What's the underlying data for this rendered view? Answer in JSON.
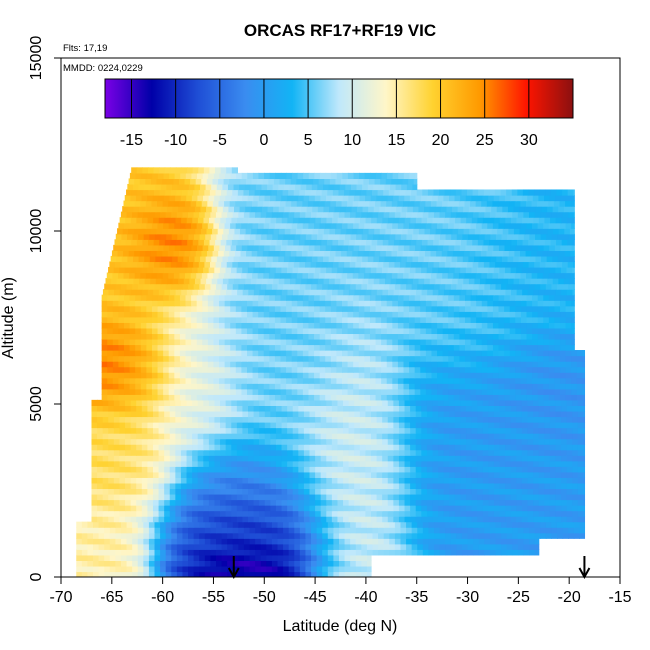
{
  "chart_data": {
    "type": "heatmap",
    "title": "ORCAS RF17+RF19 VIC",
    "annotations": [
      "Flts: 17,19",
      "MMDD: 0224,0229"
    ],
    "xlabel": "Latitude (deg N)",
    "ylabel": "Altitude (m)",
    "xlim": [
      -70,
      -15
    ],
    "ylim": [
      0,
      15000
    ],
    "x_ticks": [
      -70,
      -65,
      -60,
      -55,
      -50,
      -45,
      -40,
      -35,
      -30,
      -25,
      -20,
      -15
    ],
    "y_ticks": [
      0,
      5000,
      10000,
      15000
    ],
    "colorbar": {
      "ticks": [
        -15,
        -10,
        -5,
        0,
        5,
        10,
        15,
        20,
        25,
        30
      ],
      "range": [
        -18,
        35
      ],
      "colors": [
        "#7a00e6",
        "#0000a8",
        "#1f4fd6",
        "#3a8cf0",
        "#12b4f5",
        "#bfe8fb",
        "#fff6c8",
        "#ffd230",
        "#ff9a00",
        "#ff1500",
        "#8b1010"
      ],
      "placement": "top-inside"
    },
    "arrows_latitude": [
      -53,
      -18.5
    ],
    "regions": [
      {
        "lat": [
          -68,
          -63
        ],
        "alt": [
          0,
          1500
        ],
        "value": 15
      },
      {
        "lat": [
          -65.5,
          -60
        ],
        "alt": [
          5000,
          7200
        ],
        "value": 27
      },
      {
        "lat": [
          -66,
          -57
        ],
        "alt": [
          7200,
          11800
        ],
        "value": 20
      },
      {
        "lat": [
          -62,
          -57
        ],
        "alt": [
          8500,
          10500
        ],
        "value": 30
      },
      {
        "lat": [
          -66,
          -60
        ],
        "alt": [
          1500,
          5000
        ],
        "value": 18
      },
      {
        "lat": [
          -62,
          -54
        ],
        "alt": [
          3500,
          8000
        ],
        "value": 12
      },
      {
        "lat": [
          -60,
          -45
        ],
        "alt": [
          0,
          3500
        ],
        "value": -3
      },
      {
        "lat": [
          -57,
          -47
        ],
        "alt": [
          0,
          2000
        ],
        "value": -15
      },
      {
        "lat": [
          -55,
          -49
        ],
        "alt": [
          0,
          500
        ],
        "value": -18
      },
      {
        "lat": [
          -55,
          -40
        ],
        "alt": [
          3500,
          11800
        ],
        "value": 6
      },
      {
        "lat": [
          -45,
          -37
        ],
        "alt": [
          0,
          6500
        ],
        "value": 11
      },
      {
        "lat": [
          -37,
          -25
        ],
        "alt": [
          6500,
          11500
        ],
        "value": 6
      },
      {
        "lat": [
          -37,
          -18
        ],
        "alt": [
          500,
          6500
        ],
        "value": 0
      },
      {
        "lat": [
          -30,
          -18
        ],
        "alt": [
          7000,
          11000
        ],
        "value": 3
      },
      {
        "lat": [
          -25,
          -18
        ],
        "alt": [
          4000,
          6500
        ],
        "value": -1
      }
    ]
  }
}
